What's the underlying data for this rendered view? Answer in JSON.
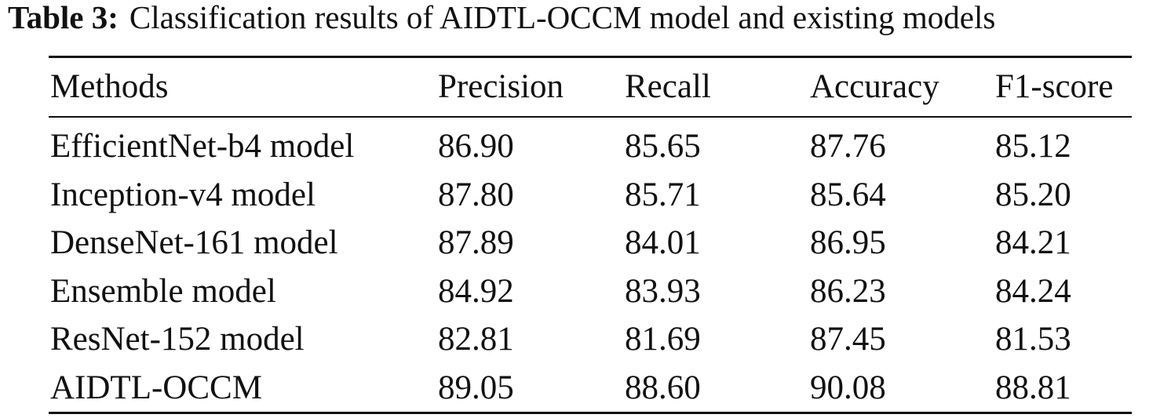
{
  "caption": {
    "label": "Table 3:",
    "text": "Classification results of AIDTL-OCCM model and existing models"
  },
  "table": {
    "header": [
      "Methods",
      "Precision",
      "Recall",
      "Accuracy",
      "F1-score"
    ],
    "rows": [
      [
        "EfficientNet-b4 model",
        "86.90",
        "85.65",
        "87.76",
        "85.12"
      ],
      [
        "Inception-v4 model",
        "87.80",
        "85.71",
        "85.64",
        "85.20"
      ],
      [
        "DenseNet-161 model",
        "87.89",
        "84.01",
        "86.95",
        "84.21"
      ],
      [
        "Ensemble model",
        "84.92",
        "83.93",
        "86.23",
        "84.24"
      ],
      [
        "ResNet-152 model",
        "82.81",
        "81.69",
        "87.45",
        "81.53"
      ],
      [
        "AIDTL-OCCM",
        "89.05",
        "88.60",
        "90.08",
        "88.81"
      ]
    ]
  }
}
